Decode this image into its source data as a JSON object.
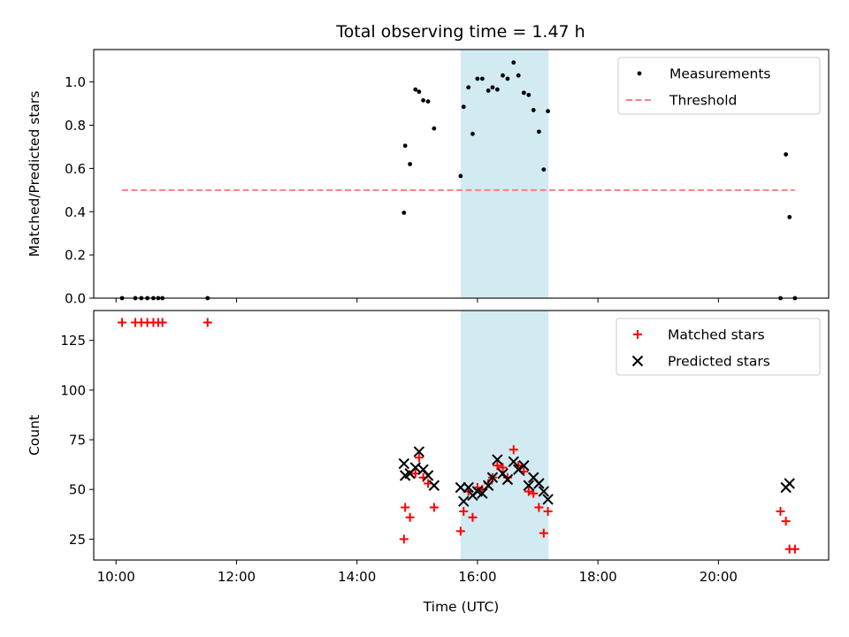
{
  "figure_title": "Total observing time = 1.47 h",
  "colors": {
    "highlight": "#add8e6",
    "threshold": "#ff7f7f",
    "measurement": "#000000",
    "matched": "#ff0000",
    "predicted": "#000000"
  },
  "chart_data": [
    {
      "type": "scatter",
      "panel": "top",
      "ylabel": "Matched/Predicted stars",
      "xlabel": "",
      "xlim": [
        9.63,
        21.83
      ],
      "ylim": [
        0,
        1.15
      ],
      "yticks": [
        0.0,
        0.2,
        0.4,
        0.6,
        0.8,
        1.0
      ],
      "ytick_labels": [
        "0.0",
        "0.2",
        "0.4",
        "0.6",
        "0.8",
        "1.0"
      ],
      "xticks": [
        10,
        12,
        14,
        16,
        18,
        20
      ],
      "show_xtick_labels": false,
      "grid": false,
      "legend_position": "top-right",
      "highlight_span": [
        15.72,
        17.18
      ],
      "series": [
        {
          "name": "Measurements",
          "kind": "points",
          "x": [
            10.1,
            10.32,
            10.42,
            10.52,
            10.62,
            10.7,
            10.77,
            11.52,
            14.78,
            14.8,
            14.88,
            14.97,
            15.03,
            15.1,
            15.18,
            15.28,
            15.72,
            15.77,
            15.85,
            15.92,
            16.0,
            16.08,
            16.18,
            16.25,
            16.33,
            16.42,
            16.5,
            16.6,
            16.68,
            16.77,
            16.85,
            16.93,
            17.02,
            17.1,
            17.17,
            21.03,
            21.12,
            21.18,
            21.27
          ],
          "y": [
            0.0,
            0.0,
            0.0,
            0.0,
            0.0,
            0.0,
            0.0,
            0.0,
            0.395,
            0.705,
            0.62,
            0.965,
            0.955,
            0.915,
            0.91,
            0.785,
            0.565,
            0.885,
            0.975,
            0.76,
            1.015,
            1.015,
            0.96,
            0.975,
            0.965,
            1.03,
            1.015,
            1.09,
            1.03,
            0.95,
            0.94,
            0.87,
            0.77,
            0.595,
            0.865,
            0.0,
            0.665,
            0.375,
            0.0
          ]
        },
        {
          "name": "Threshold",
          "kind": "dashed-line",
          "x": [
            10.1,
            21.27
          ],
          "y": [
            0.5,
            0.5
          ]
        }
      ]
    },
    {
      "type": "scatter",
      "panel": "bottom",
      "ylabel": "Count",
      "xlabel": "Time (UTC)",
      "xlim": [
        9.63,
        21.83
      ],
      "ylim": [
        14.5,
        140
      ],
      "yticks": [
        25,
        50,
        75,
        100,
        125
      ],
      "ytick_labels": [
        "25",
        "50",
        "75",
        "100",
        "125"
      ],
      "xticks": [
        10,
        12,
        14,
        16,
        18,
        20
      ],
      "xtick_labels": [
        "10:00",
        "12:00",
        "14:00",
        "16:00",
        "18:00",
        "20:00"
      ],
      "grid": false,
      "legend_position": "top-right",
      "highlight_span": [
        15.72,
        17.18
      ],
      "series": [
        {
          "name": "Matched stars",
          "kind": "plus",
          "x": [
            10.1,
            10.32,
            10.42,
            10.52,
            10.62,
            10.7,
            10.77,
            11.52,
            14.78,
            14.8,
            14.88,
            14.97,
            15.03,
            15.1,
            15.18,
            15.28,
            15.72,
            15.77,
            15.85,
            15.92,
            16.0,
            16.08,
            16.18,
            16.25,
            16.33,
            16.42,
            16.5,
            16.6,
            16.68,
            16.77,
            16.85,
            16.93,
            17.02,
            17.1,
            17.17,
            21.03,
            21.12,
            21.18,
            21.27
          ],
          "y": [
            134,
            134,
            134,
            134,
            134,
            134,
            134,
            134,
            25,
            41,
            36,
            58,
            66,
            56,
            53,
            41,
            29,
            39,
            49,
            36,
            51,
            50,
            53,
            56,
            62,
            61,
            56,
            70,
            62,
            59,
            49,
            48,
            41,
            28,
            39,
            39,
            34,
            20,
            20
          ]
        },
        {
          "name": "Predicted stars",
          "kind": "cross",
          "x": [
            14.78,
            14.8,
            14.88,
            14.97,
            15.03,
            15.1,
            15.18,
            15.28,
            15.72,
            15.77,
            15.85,
            15.92,
            16.0,
            16.08,
            16.18,
            16.25,
            16.33,
            16.42,
            16.5,
            16.6,
            16.68,
            16.77,
            16.85,
            16.93,
            17.02,
            17.1,
            17.17,
            21.12,
            21.18
          ],
          "y": [
            63,
            57,
            58,
            61,
            69,
            60,
            57,
            52,
            51,
            44,
            51,
            47,
            49,
            48,
            52,
            56,
            65,
            58,
            55,
            64,
            60,
            62,
            52,
            56,
            53,
            49,
            45,
            51,
            53
          ]
        }
      ]
    }
  ]
}
